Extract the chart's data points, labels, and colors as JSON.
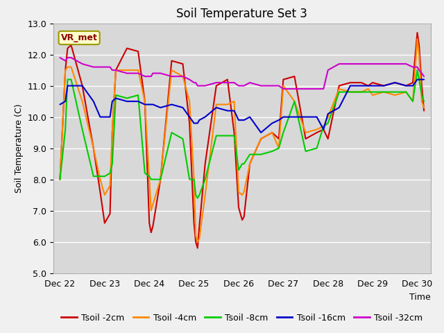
{
  "title": "Soil Temperature Set 3",
  "xlabel": "Time",
  "ylabel": "Soil Temperature (C)",
  "ylim": [
    5.0,
    13.0
  ],
  "yticks": [
    5.0,
    6.0,
    7.0,
    8.0,
    9.0,
    10.0,
    11.0,
    12.0,
    13.0
  ],
  "plot_bg_color": "#d8d8d8",
  "fig_bg_color": "#f0f0f0",
  "annotation_text": "VR_met",
  "annotation_bg": "#ffffcc",
  "annotation_border": "#999900",
  "x_labels": [
    "Dec 22",
    "Dec 23",
    "Dec 24",
    "Dec 25",
    "Dec 26",
    "Dec 27",
    "Dec 28",
    "Dec 29",
    "Dec 30"
  ],
  "x_positions": [
    0,
    1,
    2,
    3,
    4,
    5,
    6,
    7,
    8
  ],
  "series": {
    "Tsoil -2cm": {
      "color": "#cc0000",
      "x": [
        0.0,
        0.12,
        0.17,
        0.25,
        0.5,
        0.75,
        0.9,
        1.0,
        1.12,
        1.17,
        1.25,
        1.5,
        1.75,
        1.9,
        2.0,
        2.04,
        2.08,
        2.25,
        2.5,
        2.75,
        2.9,
        3.0,
        3.04,
        3.08,
        3.12,
        3.25,
        3.5,
        3.75,
        3.9,
        4.0,
        4.08,
        4.12,
        4.25,
        4.5,
        4.75,
        4.9,
        5.0,
        5.25,
        5.5,
        5.75,
        5.9,
        6.0,
        6.25,
        6.5,
        6.75,
        6.9,
        7.0,
        7.25,
        7.5,
        7.75,
        7.9,
        8.0,
        8.04,
        8.1,
        8.15
      ],
      "y": [
        8.0,
        11.5,
        12.2,
        12.3,
        11.0,
        9.0,
        7.6,
        6.6,
        6.9,
        9.5,
        11.5,
        12.2,
        12.1,
        10.5,
        6.6,
        6.3,
        6.5,
        8.0,
        11.8,
        11.7,
        9.8,
        6.6,
        6.0,
        5.8,
        6.5,
        8.5,
        11.0,
        11.2,
        9.5,
        7.1,
        6.7,
        6.8,
        8.5,
        9.3,
        9.5,
        9.3,
        11.2,
        11.3,
        9.3,
        9.5,
        9.6,
        9.3,
        11.0,
        11.1,
        11.1,
        11.0,
        11.1,
        11.0,
        11.1,
        11.0,
        11.1,
        12.7,
        12.3,
        11.0,
        10.2
      ]
    },
    "Tsoil -4cm": {
      "color": "#ff8800",
      "x": [
        0.0,
        0.12,
        0.17,
        0.25,
        0.5,
        0.75,
        0.9,
        1.0,
        1.12,
        1.17,
        1.25,
        1.5,
        1.75,
        1.9,
        2.0,
        2.04,
        2.08,
        2.25,
        2.5,
        2.75,
        2.9,
        3.0,
        3.04,
        3.08,
        3.12,
        3.25,
        3.5,
        3.75,
        3.9,
        4.0,
        4.08,
        4.12,
        4.25,
        4.5,
        4.75,
        4.9,
        5.0,
        5.25,
        5.5,
        5.75,
        5.9,
        6.0,
        6.25,
        6.5,
        6.75,
        6.9,
        7.0,
        7.25,
        7.5,
        7.75,
        7.9,
        8.0,
        8.04,
        8.1,
        8.15
      ],
      "y": [
        8.0,
        11.5,
        11.6,
        11.6,
        10.5,
        9.0,
        8.0,
        7.5,
        7.8,
        9.5,
        11.5,
        11.5,
        11.5,
        10.5,
        8.0,
        7.0,
        7.2,
        8.0,
        11.5,
        11.3,
        10.5,
        8.0,
        6.2,
        6.0,
        6.1,
        7.5,
        10.4,
        10.4,
        10.5,
        7.6,
        7.5,
        7.6,
        8.5,
        9.3,
        9.5,
        9.0,
        11.0,
        10.5,
        9.5,
        9.6,
        9.7,
        10.0,
        10.9,
        10.8,
        10.8,
        10.9,
        10.7,
        10.8,
        10.7,
        10.8,
        10.5,
        12.5,
        12.0,
        10.5,
        10.3
      ]
    },
    "Tsoil -8cm": {
      "color": "#00cc00",
      "x": [
        0.0,
        0.12,
        0.17,
        0.25,
        0.5,
        0.75,
        0.9,
        1.0,
        1.12,
        1.17,
        1.25,
        1.5,
        1.75,
        1.9,
        2.0,
        2.04,
        2.08,
        2.25,
        2.5,
        2.75,
        2.9,
        3.0,
        3.04,
        3.08,
        3.12,
        3.25,
        3.5,
        3.75,
        3.9,
        4.0,
        4.08,
        4.12,
        4.25,
        4.5,
        4.75,
        4.9,
        5.0,
        5.25,
        5.5,
        5.75,
        5.9,
        6.0,
        6.25,
        6.5,
        6.75,
        6.9,
        7.0,
        7.25,
        7.5,
        7.75,
        7.9,
        8.0,
        8.04,
        8.1,
        8.15
      ],
      "y": [
        8.0,
        9.6,
        11.2,
        11.2,
        9.6,
        8.1,
        8.1,
        8.1,
        8.2,
        8.5,
        10.7,
        10.6,
        10.7,
        8.2,
        8.1,
        8.0,
        8.0,
        8.0,
        9.5,
        9.3,
        8.0,
        8.0,
        7.5,
        7.4,
        7.5,
        8.0,
        9.4,
        9.4,
        9.4,
        8.3,
        8.5,
        8.5,
        8.8,
        8.8,
        8.9,
        9.0,
        9.5,
        10.5,
        8.9,
        9.0,
        9.7,
        9.8,
        10.8,
        10.8,
        10.8,
        10.8,
        10.8,
        10.8,
        10.8,
        10.8,
        10.5,
        11.5,
        11.2,
        10.7,
        10.5
      ]
    },
    "Tsoil -16cm": {
      "color": "#0000cc",
      "x": [
        0.0,
        0.12,
        0.17,
        0.25,
        0.5,
        0.75,
        0.9,
        1.0,
        1.12,
        1.17,
        1.25,
        1.5,
        1.75,
        1.9,
        2.0,
        2.04,
        2.08,
        2.25,
        2.5,
        2.75,
        2.9,
        3.0,
        3.04,
        3.08,
        3.12,
        3.25,
        3.5,
        3.75,
        3.9,
        4.0,
        4.08,
        4.12,
        4.25,
        4.5,
        4.75,
        4.9,
        5.0,
        5.25,
        5.5,
        5.75,
        5.9,
        6.0,
        6.25,
        6.5,
        6.75,
        6.9,
        7.0,
        7.25,
        7.5,
        7.75,
        7.9,
        8.0,
        8.04,
        8.1,
        8.15
      ],
      "y": [
        10.4,
        10.5,
        11.0,
        11.0,
        11.0,
        10.5,
        10.0,
        10.0,
        10.0,
        10.5,
        10.6,
        10.5,
        10.5,
        10.4,
        10.4,
        10.4,
        10.4,
        10.3,
        10.4,
        10.3,
        10.0,
        9.8,
        9.8,
        9.8,
        9.9,
        10.0,
        10.3,
        10.2,
        10.2,
        9.9,
        9.9,
        9.9,
        10.0,
        9.5,
        9.8,
        9.9,
        10.0,
        10.0,
        10.0,
        10.0,
        9.6,
        10.1,
        10.3,
        11.0,
        11.0,
        11.0,
        11.0,
        11.0,
        11.1,
        11.0,
        11.0,
        11.2,
        11.2,
        11.2,
        11.2
      ]
    },
    "Tsoil -32cm": {
      "color": "#cc00cc",
      "x": [
        0.0,
        0.12,
        0.17,
        0.25,
        0.5,
        0.75,
        0.9,
        1.0,
        1.12,
        1.17,
        1.25,
        1.5,
        1.75,
        1.9,
        2.0,
        2.04,
        2.08,
        2.25,
        2.5,
        2.75,
        2.9,
        3.0,
        3.04,
        3.08,
        3.12,
        3.25,
        3.5,
        3.75,
        3.9,
        4.0,
        4.08,
        4.12,
        4.25,
        4.5,
        4.75,
        4.9,
        5.0,
        5.25,
        5.5,
        5.75,
        5.9,
        6.0,
        6.25,
        6.5,
        6.75,
        6.9,
        7.0,
        7.25,
        7.5,
        7.75,
        7.9,
        8.0,
        8.04,
        8.1,
        8.15
      ],
      "y": [
        11.9,
        11.8,
        11.9,
        11.9,
        11.7,
        11.6,
        11.6,
        11.6,
        11.6,
        11.5,
        11.5,
        11.4,
        11.4,
        11.3,
        11.3,
        11.3,
        11.4,
        11.4,
        11.3,
        11.3,
        11.2,
        11.1,
        11.1,
        11.0,
        11.0,
        11.0,
        11.1,
        11.1,
        11.1,
        11.0,
        11.0,
        11.0,
        11.1,
        11.0,
        11.0,
        11.0,
        10.9,
        10.9,
        10.9,
        10.9,
        10.9,
        11.5,
        11.7,
        11.7,
        11.7,
        11.7,
        11.7,
        11.7,
        11.7,
        11.7,
        11.6,
        11.6,
        11.5,
        11.4,
        11.3
      ]
    }
  },
  "legend_entries": [
    "Tsoil -2cm",
    "Tsoil -4cm",
    "Tsoil -8cm",
    "Tsoil -16cm",
    "Tsoil -32cm"
  ],
  "legend_colors": [
    "#cc0000",
    "#ff8800",
    "#00cc00",
    "#0000cc",
    "#cc00cc"
  ]
}
